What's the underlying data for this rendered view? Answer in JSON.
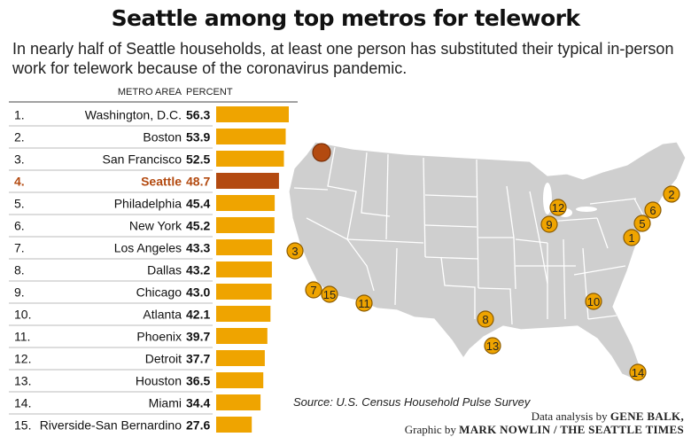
{
  "title": "Seattle among top metros for telework",
  "subtitle": "In nearly half of Seattle households, at least one person has substituted their typical in-person work for telework because of the coronavirus pandemic.",
  "chart_data": {
    "type": "bar",
    "orientation": "horizontal",
    "column_headers": {
      "metro": "METRO AREA",
      "percent": "PERCENT"
    },
    "ranks": [
      "1.",
      "2.",
      "3.",
      "4.",
      "5.",
      "6.",
      "7.",
      "8.",
      "9.",
      "10.",
      "11.",
      "12.",
      "13.",
      "14.",
      "15."
    ],
    "categories": [
      "Washington, D.C.",
      "Boston",
      "San Francisco",
      "Seattle",
      "Philadelphia",
      "New York",
      "Los Angeles",
      "Dallas",
      "Chicago",
      "Atlanta",
      "Phoenix",
      "Detroit",
      "Houston",
      "Miami",
      "Riverside-San Bernardino"
    ],
    "values": [
      56.3,
      53.9,
      52.5,
      48.7,
      45.4,
      45.2,
      43.3,
      43.2,
      43.0,
      42.1,
      39.7,
      37.7,
      36.5,
      34.4,
      27.6
    ],
    "value_labels": [
      "56.3",
      "53.9",
      "52.5",
      "48.7",
      "45.4",
      "45.2",
      "43.3",
      "43.2",
      "43.0",
      "42.1",
      "39.7",
      "37.7",
      "36.5",
      "34.4",
      "27.6"
    ],
    "highlight": "Seattle",
    "xlim": [
      0,
      60
    ],
    "colors": {
      "bar": "#EFA400",
      "highlight_bar": "#B34A10",
      "highlight_text": "#B34A10",
      "rule": "#bbbbbb"
    }
  },
  "map": {
    "land_color": "#cfcfcf",
    "state_line_color": "#ffffff",
    "marker_color": "#EFA400",
    "marker_stroke": "#8a5a00",
    "seattle_marker_color": "#B34A10",
    "markers": [
      "1",
      "2",
      "3",
      "5",
      "6",
      "7",
      "8",
      "9",
      "10",
      "11",
      "12",
      "13",
      "14",
      "15"
    ]
  },
  "source": "Source: U.S. Census Household Pulse Survey",
  "credit": {
    "line1_prefix": "Data analysis by",
    "line1_name": "GENE BALK,",
    "line2_prefix": "Graphic by",
    "line2_name": "MARK NOWLIN / THE SEATTLE TIMES"
  }
}
